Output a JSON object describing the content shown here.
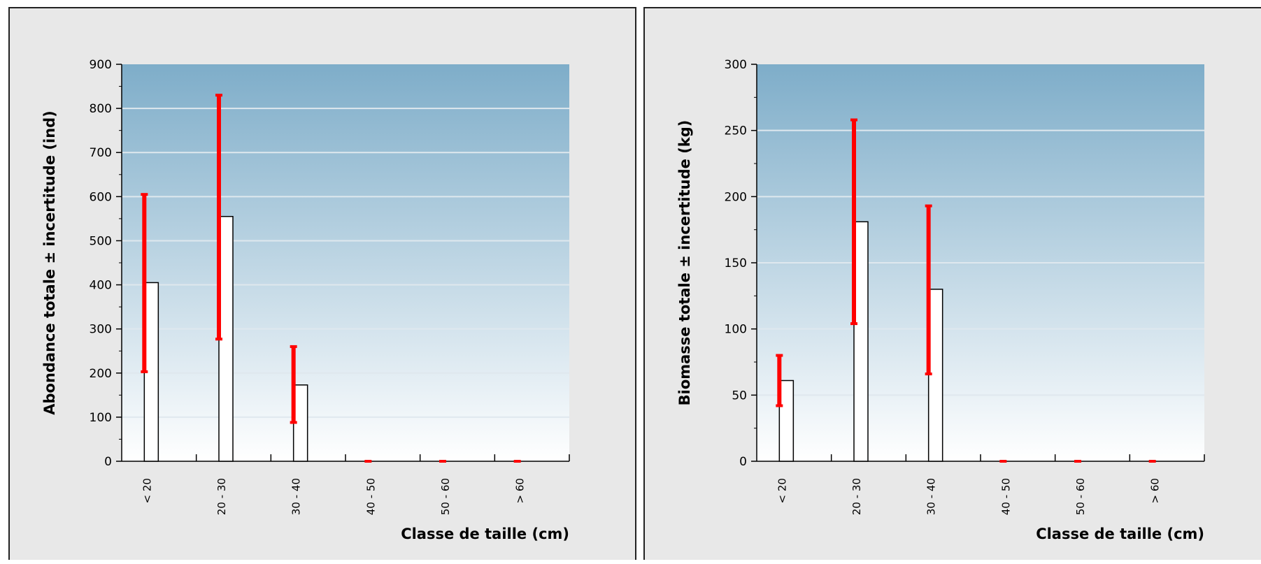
{
  "chart_data": [
    {
      "type": "bar",
      "categories": [
        "< 20",
        "20 - 30",
        "30 - 40",
        "40 - 50",
        "50 - 60",
        "> 60"
      ],
      "values": [
        405,
        555,
        173,
        0,
        0,
        0
      ],
      "error_low": [
        203,
        277,
        88,
        0,
        0,
        0
      ],
      "error_high": [
        605,
        830,
        260,
        0,
        0,
        0
      ],
      "ylabel": "Abondance totale ± incertitude (ind)",
      "xlabel": "Classe de taille (cm)",
      "ylim": [
        0,
        900
      ],
      "yticks": [
        0,
        100,
        200,
        300,
        400,
        500,
        600,
        700,
        800,
        900
      ],
      "grid": true,
      "error_bar_color": "#ff0000",
      "bar_fill": "#ffffff",
      "bar_edge": "#000000"
    },
    {
      "type": "bar",
      "categories": [
        "< 20",
        "20 - 30",
        "30 - 40",
        "40 - 50",
        "50 - 60",
        "> 60"
      ],
      "values": [
        61,
        181,
        130,
        0,
        0,
        0
      ],
      "error_low": [
        42,
        104,
        66,
        0,
        0,
        0
      ],
      "error_high": [
        80,
        258,
        193,
        0,
        0,
        0
      ],
      "ylabel": "Biomasse totale ± incertitude (kg)",
      "xlabel": "Classe de taille (cm)",
      "ylim": [
        0,
        300
      ],
      "yticks": [
        0,
        50,
        100,
        150,
        200,
        250,
        300
      ],
      "grid": true,
      "error_bar_color": "#ff0000",
      "bar_fill": "#ffffff",
      "bar_edge": "#000000"
    }
  ],
  "colors": {
    "plot_gradient_top": "#7eadc9",
    "plot_gradient_bottom": "#ffffff",
    "panel_background": "#e8e8e8",
    "gridline": "#dfe8ee"
  }
}
